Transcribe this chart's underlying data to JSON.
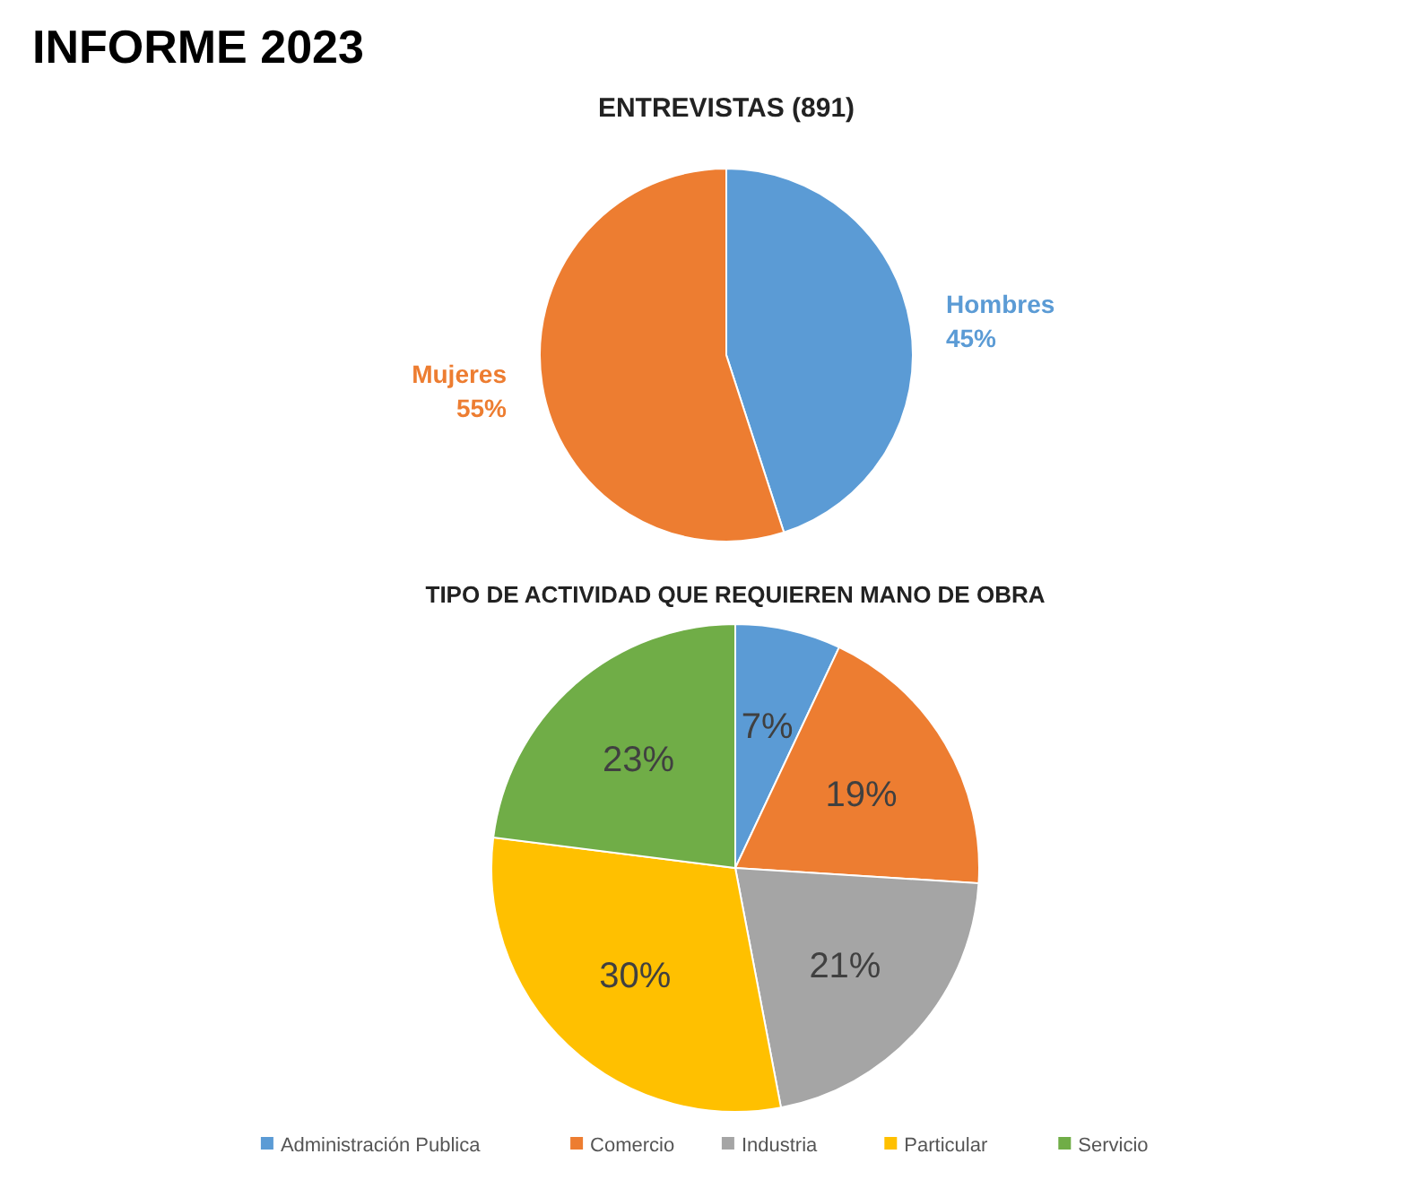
{
  "chart_data": [
    {
      "type": "pie",
      "title": "ENTREVISTAS (891)",
      "annotations": [
        "INFORME 2023"
      ],
      "categories": [
        "Hombres",
        "Mujeres"
      ],
      "values": [
        45,
        55
      ],
      "colors": [
        "#5b9bd5",
        "#ed7d31"
      ],
      "value_labels": [
        "45%",
        "55%"
      ],
      "legend": false
    },
    {
      "type": "pie",
      "title": "TIPO DE ACTIVIDAD QUE REQUIEREN MANO DE OBRA",
      "categories": [
        "Administración Publica",
        "Comercio",
        "Industria",
        "Particular",
        "Servicio"
      ],
      "values": [
        7,
        19,
        21,
        30,
        23
      ],
      "colors": [
        "#5b9bd5",
        "#ed7d31",
        "#a5a5a5",
        "#ffc000",
        "#70ad47"
      ],
      "value_labels": [
        "7%",
        "19%",
        "21%",
        "30%",
        "23%"
      ],
      "legend": "bottom"
    }
  ]
}
